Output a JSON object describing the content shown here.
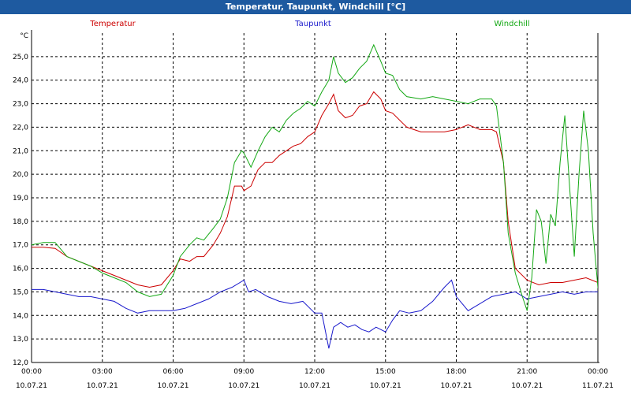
{
  "window": {
    "title": "Temperatur, Taupunkt, Windchill [°C]"
  },
  "chart_data": {
    "type": "line",
    "title": "Temperatur, Taupunkt, Windchill [°C]",
    "ylabel": "°C",
    "xlabel": "",
    "ylim": [
      12.0,
      26.0
    ],
    "xlim_hours": [
      0,
      24
    ],
    "grid": true,
    "legend_placement": "top",
    "y_ticks": [
      "12,0",
      "13,0",
      "14,0",
      "15,0",
      "16,0",
      "17,0",
      "18,0",
      "19,0",
      "20,0",
      "21,0",
      "22,0",
      "23,0",
      "24,0",
      "25,0"
    ],
    "x_ticks": [
      {
        "time": "00:00",
        "date": "10.07.21"
      },
      {
        "time": "03:00",
        "date": "10.07.21"
      },
      {
        "time": "06:00",
        "date": "10.07.21"
      },
      {
        "time": "09:00",
        "date": "10.07.21"
      },
      {
        "time": "12:00",
        "date": "10.07.21"
      },
      {
        "time": "15:00",
        "date": "10.07.21"
      },
      {
        "time": "18:00",
        "date": "10.07.21"
      },
      {
        "time": "21:00",
        "date": "10.07.21"
      },
      {
        "time": "00:00",
        "date": "11.07.21"
      }
    ],
    "series": [
      {
        "name": "Temperatur",
        "color": "#cc0000",
        "points": [
          [
            0,
            16.9
          ],
          [
            0.5,
            16.9
          ],
          [
            1,
            16.85
          ],
          [
            1.5,
            16.5
          ],
          [
            2,
            16.3
          ],
          [
            2.5,
            16.1
          ],
          [
            3,
            15.9
          ],
          [
            3.5,
            15.7
          ],
          [
            4,
            15.5
          ],
          [
            4.5,
            15.3
          ],
          [
            5,
            15.2
          ],
          [
            5.5,
            15.3
          ],
          [
            6,
            15.9
          ],
          [
            6.3,
            16.4
          ],
          [
            6.7,
            16.3
          ],
          [
            7,
            16.5
          ],
          [
            7.3,
            16.5
          ],
          [
            7.7,
            17.0
          ],
          [
            8,
            17.5
          ],
          [
            8.3,
            18.2
          ],
          [
            8.6,
            19.5
          ],
          [
            8.9,
            19.5
          ],
          [
            9,
            19.3
          ],
          [
            9.3,
            19.5
          ],
          [
            9.6,
            20.2
          ],
          [
            9.9,
            20.5
          ],
          [
            10.2,
            20.5
          ],
          [
            10.5,
            20.8
          ],
          [
            10.8,
            21.0
          ],
          [
            11.1,
            21.2
          ],
          [
            11.4,
            21.3
          ],
          [
            11.7,
            21.6
          ],
          [
            12,
            21.8
          ],
          [
            12.3,
            22.5
          ],
          [
            12.6,
            23.0
          ],
          [
            12.8,
            23.4
          ],
          [
            13.0,
            22.7
          ],
          [
            13.3,
            22.4
          ],
          [
            13.6,
            22.5
          ],
          [
            13.9,
            22.9
          ],
          [
            14.2,
            23.0
          ],
          [
            14.5,
            23.5
          ],
          [
            14.8,
            23.2
          ],
          [
            15,
            22.7
          ],
          [
            15.3,
            22.6
          ],
          [
            15.6,
            22.3
          ],
          [
            15.9,
            22.0
          ],
          [
            16.5,
            21.8
          ],
          [
            17,
            21.8
          ],
          [
            17.5,
            21.8
          ],
          [
            18,
            21.9
          ],
          [
            18.5,
            22.1
          ],
          [
            19,
            21.9
          ],
          [
            19.5,
            21.9
          ],
          [
            19.7,
            21.8
          ],
          [
            20,
            20.5
          ],
          [
            20.2,
            18.0
          ],
          [
            20.5,
            16.0
          ],
          [
            21,
            15.5
          ],
          [
            21.5,
            15.3
          ],
          [
            22,
            15.4
          ],
          [
            22.5,
            15.4
          ],
          [
            23,
            15.5
          ],
          [
            23.5,
            15.6
          ],
          [
            24,
            15.4
          ]
        ]
      },
      {
        "name": "Taupunkt",
        "color": "#1a1acc",
        "points": [
          [
            0,
            15.1
          ],
          [
            0.5,
            15.1
          ],
          [
            1,
            15.0
          ],
          [
            1.5,
            14.9
          ],
          [
            2,
            14.8
          ],
          [
            2.5,
            14.8
          ],
          [
            3,
            14.7
          ],
          [
            3.5,
            14.6
          ],
          [
            4,
            14.3
          ],
          [
            4.5,
            14.1
          ],
          [
            5,
            14.2
          ],
          [
            5.5,
            14.2
          ],
          [
            6,
            14.2
          ],
          [
            6.5,
            14.3
          ],
          [
            7,
            14.5
          ],
          [
            7.5,
            14.7
          ],
          [
            8,
            15.0
          ],
          [
            8.5,
            15.2
          ],
          [
            9,
            15.5
          ],
          [
            9.2,
            15.0
          ],
          [
            9.5,
            15.1
          ],
          [
            10,
            14.8
          ],
          [
            10.5,
            14.6
          ],
          [
            11,
            14.5
          ],
          [
            11.5,
            14.6
          ],
          [
            12,
            14.1
          ],
          [
            12.3,
            14.1
          ],
          [
            12.6,
            12.6
          ],
          [
            12.8,
            13.5
          ],
          [
            13.1,
            13.7
          ],
          [
            13.4,
            13.5
          ],
          [
            13.7,
            13.6
          ],
          [
            14,
            13.4
          ],
          [
            14.3,
            13.3
          ],
          [
            14.6,
            13.5
          ],
          [
            15,
            13.3
          ],
          [
            15.3,
            13.8
          ],
          [
            15.6,
            14.2
          ],
          [
            16,
            14.1
          ],
          [
            16.5,
            14.2
          ],
          [
            17,
            14.6
          ],
          [
            17.5,
            15.2
          ],
          [
            17.8,
            15.5
          ],
          [
            18,
            14.8
          ],
          [
            18.5,
            14.2
          ],
          [
            19,
            14.5
          ],
          [
            19.5,
            14.8
          ],
          [
            20,
            14.9
          ],
          [
            20.5,
            15.0
          ],
          [
            21,
            14.7
          ],
          [
            21.5,
            14.8
          ],
          [
            22,
            14.9
          ],
          [
            22.5,
            15.0
          ],
          [
            23,
            14.9
          ],
          [
            23.5,
            15.0
          ],
          [
            24,
            15.0
          ]
        ]
      },
      {
        "name": "Windchill",
        "color": "#14a814",
        "points": [
          [
            0,
            17.0
          ],
          [
            0.5,
            17.1
          ],
          [
            1,
            17.1
          ],
          [
            1.5,
            16.5
          ],
          [
            2,
            16.3
          ],
          [
            2.5,
            16.1
          ],
          [
            3,
            15.8
          ],
          [
            3.5,
            15.6
          ],
          [
            4,
            15.4
          ],
          [
            4.5,
            15.0
          ],
          [
            5,
            14.8
          ],
          [
            5.5,
            14.9
          ],
          [
            6,
            15.7
          ],
          [
            6.3,
            16.5
          ],
          [
            6.7,
            17.0
          ],
          [
            7,
            17.3
          ],
          [
            7.3,
            17.2
          ],
          [
            7.7,
            17.7
          ],
          [
            8,
            18.1
          ],
          [
            8.3,
            19.0
          ],
          [
            8.6,
            20.5
          ],
          [
            8.9,
            21.0
          ],
          [
            9,
            20.9
          ],
          [
            9.3,
            20.3
          ],
          [
            9.6,
            21.0
          ],
          [
            9.9,
            21.6
          ],
          [
            10.2,
            22.0
          ],
          [
            10.5,
            21.8
          ],
          [
            10.8,
            22.3
          ],
          [
            11.1,
            22.6
          ],
          [
            11.4,
            22.8
          ],
          [
            11.7,
            23.1
          ],
          [
            12,
            22.9
          ],
          [
            12.3,
            23.5
          ],
          [
            12.6,
            24.0
          ],
          [
            12.8,
            25.0
          ],
          [
            13.0,
            24.3
          ],
          [
            13.3,
            23.9
          ],
          [
            13.6,
            24.1
          ],
          [
            13.9,
            24.5
          ],
          [
            14.2,
            24.8
          ],
          [
            14.5,
            25.5
          ],
          [
            14.8,
            24.8
          ],
          [
            15,
            24.3
          ],
          [
            15.3,
            24.2
          ],
          [
            15.6,
            23.6
          ],
          [
            15.9,
            23.3
          ],
          [
            16.5,
            23.2
          ],
          [
            17,
            23.3
          ],
          [
            17.5,
            23.2
          ],
          [
            18,
            23.1
          ],
          [
            18.5,
            23.0
          ],
          [
            19,
            23.2
          ],
          [
            19.5,
            23.2
          ],
          [
            19.7,
            22.9
          ],
          [
            20,
            20.5
          ],
          [
            20.2,
            17.5
          ],
          [
            20.5,
            15.8
          ],
          [
            20.8,
            14.8
          ],
          [
            21,
            14.2
          ],
          [
            21.2,
            15.6
          ],
          [
            21.4,
            18.5
          ],
          [
            21.6,
            18.0
          ],
          [
            21.8,
            16.2
          ],
          [
            22.0,
            18.3
          ],
          [
            22.2,
            17.8
          ],
          [
            22.4,
            20.5
          ],
          [
            22.6,
            22.5
          ],
          [
            22.8,
            19.5
          ],
          [
            23.0,
            16.5
          ],
          [
            23.2,
            20.0
          ],
          [
            23.4,
            22.7
          ],
          [
            23.6,
            21.0
          ],
          [
            23.8,
            17.5
          ],
          [
            24,
            15.2
          ],
          [
            24.2,
            15.6
          ],
          [
            24.4,
            16.0
          ]
        ]
      }
    ]
  }
}
